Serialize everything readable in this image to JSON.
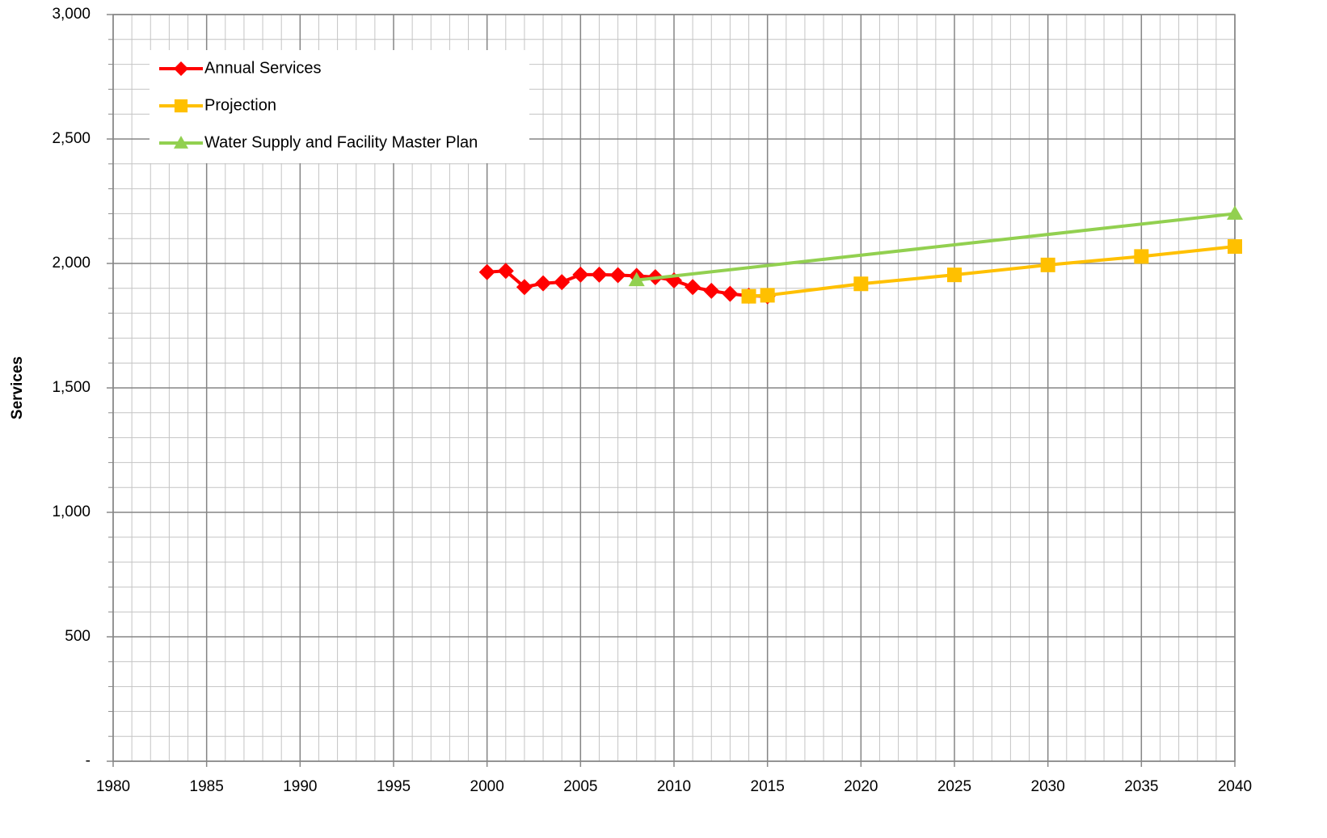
{
  "chart_data": {
    "type": "line",
    "ylabel": "Services",
    "xlim": [
      1980,
      2040
    ],
    "xticks": [
      1980,
      1985,
      1990,
      1995,
      2000,
      2005,
      2010,
      2015,
      2020,
      2025,
      2030,
      2035,
      2040
    ],
    "ylim": [
      0,
      3000
    ],
    "yticks": [
      {
        "value": 0,
        "label": "-"
      },
      500,
      {
        "value": 1000,
        "label": "1,000"
      },
      {
        "value": 1500,
        "label": "1,500"
      },
      {
        "value": 2000,
        "label": "2,000"
      },
      {
        "value": 2500,
        "label": "2,500"
      },
      {
        "value": 3000,
        "label": "3,000"
      }
    ],
    "grid": true,
    "minor_grid_step": {
      "x": 1,
      "y": 100
    },
    "legend": "upper left",
    "series": [
      {
        "name": "Annual Services",
        "color": "#ff0000",
        "marker": "diamond",
        "x": [
          2000,
          2001,
          2002,
          2003,
          2004,
          2005,
          2006,
          2007,
          2008,
          2009,
          2010,
          2011,
          2012,
          2013,
          2014,
          2015
        ],
        "values": [
          1965,
          1970,
          1905,
          1920,
          1925,
          1955,
          1955,
          1953,
          1950,
          1945,
          1932,
          1905,
          1890,
          1878,
          1870,
          1868
        ]
      },
      {
        "name": "Projection",
        "color": "#ffc000",
        "marker": "square",
        "x": [
          2014,
          2015,
          2020,
          2025,
          2030,
          2035,
          2040
        ],
        "values": [
          1868,
          1872,
          1918,
          1954,
          1994,
          2028,
          2068
        ]
      },
      {
        "name": "Water Supply and Facility Master Plan",
        "color": "#92d050",
        "marker": "triangle",
        "x": [
          2008,
          2040
        ],
        "values": [
          1933,
          2200
        ]
      }
    ]
  }
}
